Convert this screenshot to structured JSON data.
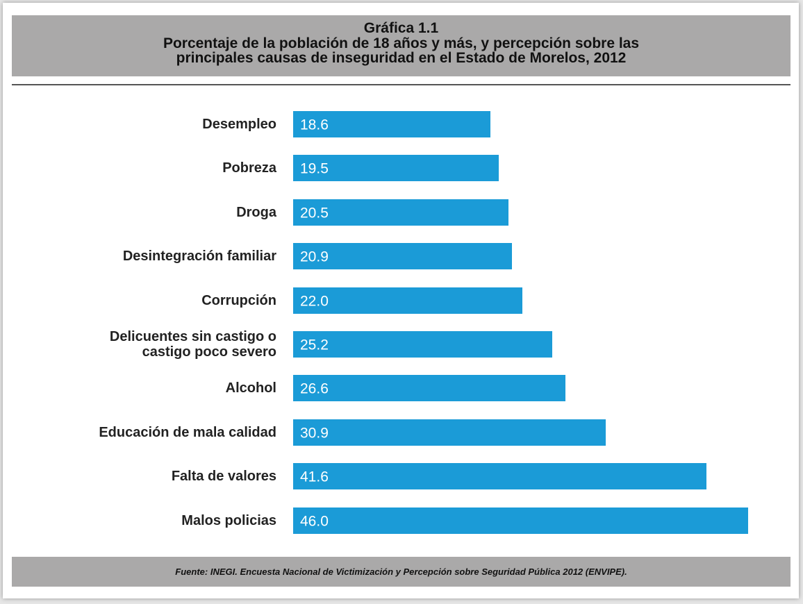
{
  "chart_data": {
    "type": "bar",
    "title": "Gráfica 1.1",
    "subtitle": [
      "Porcentaje de la población de 18 años y más, y percepción sobre las",
      "principales causas de inseguridad en el Estado de Morelos, 2012"
    ],
    "categories": [
      "Desempleo",
      "Pobreza",
      "Droga",
      "Desintegración familiar",
      "Corrupción",
      "Delicuentes sin castigo o\ncastigo poco severo",
      "Alcohol",
      "Educación de mala calidad",
      "Falta de valores",
      "Malos policias"
    ],
    "values": [
      18.6,
      19.5,
      20.5,
      20.9,
      22.0,
      25.2,
      26.6,
      30.9,
      41.6,
      46.0
    ],
    "value_labels": [
      "18.6",
      "19.5",
      "20.5",
      "20.9",
      "22.0",
      "25.2",
      "26.6",
      "30.9",
      "41.6",
      "46.0"
    ],
    "color": "#1b9bd7",
    "source": "Fuente: INEGI. Encuesta Nacional de Victimización y Percepción sobre Seguridad Pública 2012 (ENVIPE)."
  }
}
